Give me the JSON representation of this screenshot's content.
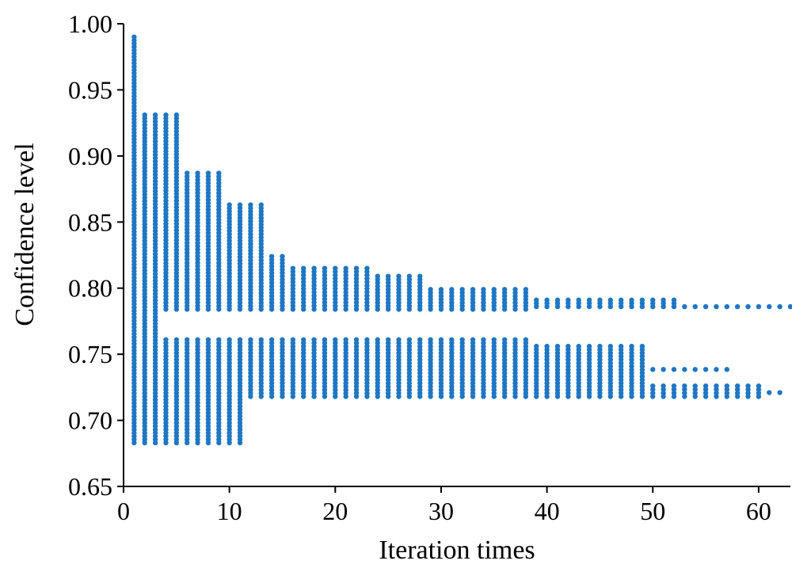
{
  "chart_data": {
    "type": "scatter",
    "title": "",
    "xlabel": "Iteration times",
    "ylabel": "Confidence level",
    "xlim": [
      0,
      63
    ],
    "ylim": [
      0.65,
      1.0
    ],
    "xticks": [
      0,
      10,
      20,
      30,
      40,
      50,
      60
    ],
    "xtick_labels": [
      "0",
      "10",
      "20",
      "30",
      "40",
      "50",
      "60"
    ],
    "yticks": [
      0.65,
      0.7,
      0.75,
      0.8,
      0.85,
      0.9,
      0.95,
      1.0
    ],
    "ytick_labels": [
      "0.65",
      "0.70",
      "0.75",
      "0.80",
      "0.85",
      "0.90",
      "0.95",
      "1.00"
    ],
    "grid": false,
    "marker_color": "#1f77c4",
    "point_spacing": 0.0025,
    "series": [
      {
        "segments": [
          {
            "x_from": 1,
            "x_to": 1,
            "y_min": 0.683,
            "y_max": 0.99
          },
          {
            "x_from": 2,
            "x_to": 3,
            "y_min": 0.683,
            "y_max": 0.931
          },
          {
            "x_from": 4,
            "x_to": 5,
            "y_min": 0.784,
            "y_max": 0.931
          },
          {
            "x_from": 4,
            "x_to": 5,
            "y_min": 0.683,
            "y_max": 0.761
          },
          {
            "x_from": 6,
            "x_to": 9,
            "y_min": 0.784,
            "y_max": 0.887
          },
          {
            "x_from": 6,
            "x_to": 9,
            "y_min": 0.683,
            "y_max": 0.761
          },
          {
            "x_from": 10,
            "x_to": 11,
            "y_min": 0.784,
            "y_max": 0.863
          },
          {
            "x_from": 10,
            "x_to": 11,
            "y_min": 0.683,
            "y_max": 0.761
          },
          {
            "x_from": 12,
            "x_to": 13,
            "y_min": 0.784,
            "y_max": 0.863
          },
          {
            "x_from": 12,
            "x_to": 13,
            "y_min": 0.718,
            "y_max": 0.761
          },
          {
            "x_from": 14,
            "x_to": 15,
            "y_min": 0.784,
            "y_max": 0.824
          },
          {
            "x_from": 14,
            "x_to": 15,
            "y_min": 0.718,
            "y_max": 0.761
          },
          {
            "x_from": 16,
            "x_to": 23,
            "y_min": 0.784,
            "y_max": 0.815
          },
          {
            "x_from": 16,
            "x_to": 23,
            "y_min": 0.718,
            "y_max": 0.761
          },
          {
            "x_from": 24,
            "x_to": 28,
            "y_min": 0.784,
            "y_max": 0.809
          },
          {
            "x_from": 24,
            "x_to": 28,
            "y_min": 0.718,
            "y_max": 0.761
          },
          {
            "x_from": 29,
            "x_to": 38,
            "y_min": 0.784,
            "y_max": 0.799
          },
          {
            "x_from": 29,
            "x_to": 38,
            "y_min": 0.718,
            "y_max": 0.761
          },
          {
            "x_from": 39,
            "x_to": 52,
            "y_min": 0.786,
            "y_max": 0.791
          },
          {
            "x_from": 39,
            "x_to": 49,
            "y_min": 0.718,
            "y_max": 0.756
          },
          {
            "x_from": 50,
            "x_to": 57,
            "y_min": 0.7385,
            "y_max": 0.7385
          },
          {
            "x_from": 50,
            "x_to": 60,
            "y_min": 0.718,
            "y_max": 0.726
          },
          {
            "x_from": 53,
            "x_to": 63,
            "y_min": 0.786,
            "y_max": 0.786
          },
          {
            "x_from": 61,
            "x_to": 62,
            "y_min": 0.721,
            "y_max": 0.721
          }
        ]
      }
    ]
  }
}
